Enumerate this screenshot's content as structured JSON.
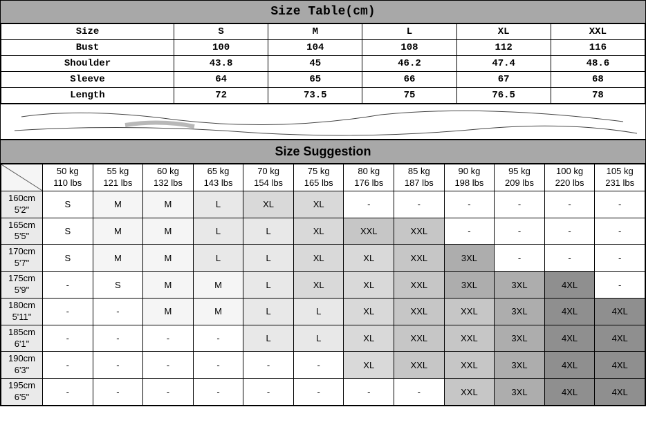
{
  "sizeTable": {
    "title": "Size Table(cm)",
    "labelColWidth": 250,
    "rows": [
      {
        "label": "Size",
        "values": [
          "S",
          "M",
          "L",
          "XL",
          "XXL"
        ]
      },
      {
        "label": "Bust",
        "values": [
          "100",
          "104",
          "108",
          "112",
          "116"
        ]
      },
      {
        "label": "Shoulder",
        "values": [
          "43.8",
          "45",
          "46.2",
          "47.4",
          "48.6"
        ]
      },
      {
        "label": "Sleeve",
        "values": [
          "64",
          "65",
          "66",
          "67",
          "68"
        ]
      },
      {
        "label": "Length",
        "values": [
          "72",
          "73.5",
          "75",
          "76.5",
          "78"
        ]
      }
    ]
  },
  "suggestion": {
    "title": "Size Suggestion",
    "weights": [
      {
        "kg": "50 kg",
        "lbs": "110 lbs"
      },
      {
        "kg": "55 kg",
        "lbs": "121 lbs"
      },
      {
        "kg": "60 kg",
        "lbs": "132 lbs"
      },
      {
        "kg": "65 kg",
        "lbs": "143 lbs"
      },
      {
        "kg": "70 kg",
        "lbs": "154 lbs"
      },
      {
        "kg": "75 kg",
        "lbs": "165 lbs"
      },
      {
        "kg": "80 kg",
        "lbs": "176 lbs"
      },
      {
        "kg": "85 kg",
        "lbs": "187 lbs"
      },
      {
        "kg": "90 kg",
        "lbs": "198 lbs"
      },
      {
        "kg": "95 kg",
        "lbs": "209 lbs"
      },
      {
        "kg": "100 kg",
        "lbs": "220 lbs"
      },
      {
        "kg": "105 kg",
        "lbs": "231 lbs"
      }
    ],
    "heights": [
      {
        "cm": "160cm",
        "ft": "5'2\""
      },
      {
        "cm": "165cm",
        "ft": "5'5\""
      },
      {
        "cm": "170cm",
        "ft": "5'7\""
      },
      {
        "cm": "175cm",
        "ft": "5'9\""
      },
      {
        "cm": "180cm",
        "ft": "5'11\""
      },
      {
        "cm": "185cm",
        "ft": "6'1\""
      },
      {
        "cm": "190cm",
        "ft": "6'3\""
      },
      {
        "cm": "195cm",
        "ft": "6'5\""
      }
    ],
    "grid": [
      [
        "S",
        "M",
        "M",
        "L",
        "XL",
        "XL",
        "-",
        "-",
        "-",
        "-",
        "-",
        "-"
      ],
      [
        "S",
        "M",
        "M",
        "L",
        "L",
        "XL",
        "XXL",
        "XXL",
        "-",
        "-",
        "-",
        "-"
      ],
      [
        "S",
        "M",
        "M",
        "L",
        "L",
        "XL",
        "XL",
        "XXL",
        "3XL",
        "-",
        "-",
        "-"
      ],
      [
        "-",
        "S",
        "M",
        "M",
        "L",
        "XL",
        "XL",
        "XXL",
        "3XL",
        "3XL",
        "4XL",
        "-"
      ],
      [
        "-",
        "-",
        "M",
        "M",
        "L",
        "L",
        "XL",
        "XXL",
        "XXL",
        "3XL",
        "4XL",
        "4XL"
      ],
      [
        "-",
        "-",
        "-",
        "-",
        "L",
        "L",
        "XL",
        "XXL",
        "XXL",
        "3XL",
        "4XL",
        "4XL"
      ],
      [
        "-",
        "-",
        "-",
        "-",
        "-",
        "-",
        "XL",
        "XXL",
        "XXL",
        "3XL",
        "4XL",
        "4XL"
      ],
      [
        "-",
        "-",
        "-",
        "-",
        "-",
        "-",
        "-",
        "-",
        "XXL",
        "3XL",
        "4XL",
        "4XL"
      ]
    ],
    "colors": {
      "S": "#ffffff",
      "M": "#f5f5f5",
      "L": "#e8e8e8",
      "XL": "#d9d9d9",
      "XXL": "#c6c6c6",
      "3XL": "#adadad",
      "4XL": "#8f8f8f",
      "-": "#ffffff"
    },
    "headerBg": "#a8a8a8",
    "heightColBg": "#eaeaea"
  }
}
